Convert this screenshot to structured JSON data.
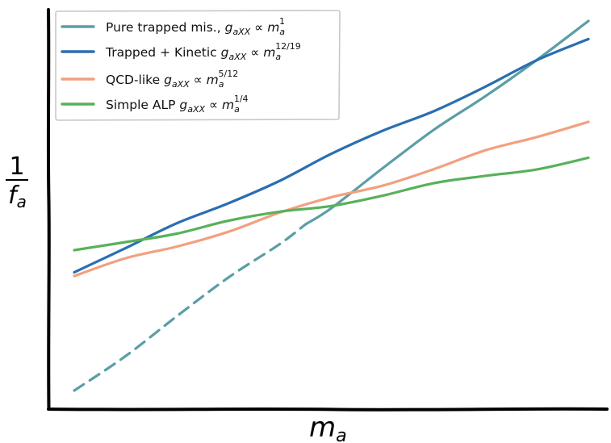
{
  "chart_data": {
    "type": "line",
    "xlabel": "m",
    "xlabel_sub": "a",
    "ylabel_num": "1",
    "ylabel_den": "f",
    "ylabel_den_sub": "a",
    "xticks": [],
    "yticks": [],
    "legend_position": "top-left",
    "x_scale": "log",
    "y_scale": "log",
    "grid": false,
    "series": [
      {
        "name": "Pure trapped mis.",
        "formula": {
          "lhs": "g",
          "lhs_sub": "aXX",
          "rel": " ∝ ",
          "base": "m",
          "base_sub": "a",
          "exp": "1"
        },
        "color": "#5b9ea6",
        "segments": [
          {
            "style": "dashed",
            "x": [
              0.0,
              0.1,
              0.2,
              0.3,
              0.4,
              0.45
            ],
            "y": [
              0.0,
              0.1,
              0.2,
              0.3,
              0.4,
              0.45
            ]
          },
          {
            "style": "solid",
            "x": [
              0.45,
              0.5,
              0.6,
              0.7,
              0.8,
              0.9,
              1.0
            ],
            "y": [
              0.45,
              0.5,
              0.6,
              0.7,
              0.8,
              0.9,
              1.0
            ]
          }
        ]
      },
      {
        "name": "Trapped + Kinetic",
        "formula": {
          "lhs": "g",
          "lhs_sub": "aXX",
          "rel": " ∝ ",
          "base": "m",
          "base_sub": "a",
          "exp": "12/19"
        },
        "color": "#2a6fb0",
        "segments": [
          {
            "style": "solid",
            "x": [
              0.0,
              0.1,
              0.2,
              0.3,
              0.4,
              0.5,
              0.6,
              0.7,
              0.8,
              0.9,
              1.0
            ],
            "y": [
              0.32,
              0.384,
              0.447,
              0.51,
              0.573,
              0.636,
              0.699,
              0.762,
              0.825,
              0.888,
              0.951
            ]
          }
        ]
      },
      {
        "name": "QCD-like",
        "formula": {
          "lhs": "g",
          "lhs_sub": "aXX",
          "rel": " ∝ ",
          "base": "m",
          "base_sub": "a",
          "exp": "5/12"
        },
        "color": "#f2a07f",
        "segments": [
          {
            "style": "solid",
            "x": [
              0.0,
              0.1,
              0.2,
              0.3,
              0.4,
              0.5,
              0.6,
              0.7,
              0.8,
              0.9,
              1.0
            ],
            "y": [
              0.31,
              0.352,
              0.393,
              0.435,
              0.477,
              0.519,
              0.56,
              0.602,
              0.644,
              0.685,
              0.727
            ]
          }
        ]
      },
      {
        "name": "Simple ALP",
        "formula": {
          "lhs": "g",
          "lhs_sub": "aXX",
          "rel": " ∝ ",
          "base": "m",
          "base_sub": "a",
          "exp": "1/4"
        },
        "color": "#58b15a",
        "segments": [
          {
            "style": "solid",
            "x": [
              0.0,
              0.1,
              0.2,
              0.3,
              0.4,
              0.5,
              0.6,
              0.7,
              0.8,
              0.9,
              1.0
            ],
            "y": [
              0.38,
              0.405,
              0.43,
              0.455,
              0.48,
              0.505,
              0.53,
              0.555,
              0.58,
              0.605,
              0.63
            ]
          }
        ]
      }
    ]
  }
}
